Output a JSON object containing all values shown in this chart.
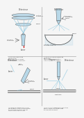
{
  "background_color": "#f5f5f5",
  "light_blue": "#b8d8e8",
  "mid_blue": "#7ab8d4",
  "dark_outline": "#444444",
  "text_color": "#222222",
  "label_color": "#333333",
  "ray_color": "#90c8e0",
  "divider_color": "#aaaaaa",
  "panel1": {
    "detector_label": "Détecteur",
    "lens_label": "Lentille\ncollectrice",
    "object_label": "Object",
    "probe_label": "Probe in\nnear field",
    "laser_label": "Laser"
  },
  "panel2": {
    "detector_label": "Détecteur",
    "probe_label": "Probe in\nemanating\nObject",
    "lighting_label": "Indirect lighting\nby evanescence"
  },
  "panel3": {
    "detector_label": "Détecteur",
    "laser_label": "Laser",
    "fiber_label": "Fibre\noptique",
    "probe_label": "Probe in\nnear field",
    "object_label": "Object"
  },
  "panel4": {
    "source_label": "Illumination\nsource",
    "detector_label": "Détecteur",
    "laser_label": "Laser",
    "object_label": "Object",
    "substrate_label": "Substrate"
  },
  "caption1": "(1) ANSOM (Illuminating\nSharp Probe)\nCollect Microscopy probe\nin illumination, collected in...",
  "caption2": "(2) SNOM (Scattering Tunnelling\nMicroscopy)\nTotal collection Illumination\nIntensity probe in formation...",
  "caption3": "(3) Immersion evanescent source\nThe probe is used as a local emitter\nto illuminate an object. The out\nfield one lighting collected.",
  "caption4": "(4) Fluorescent evanescent illumination\nSemiconductor with probe used\nto illuminate an object."
}
